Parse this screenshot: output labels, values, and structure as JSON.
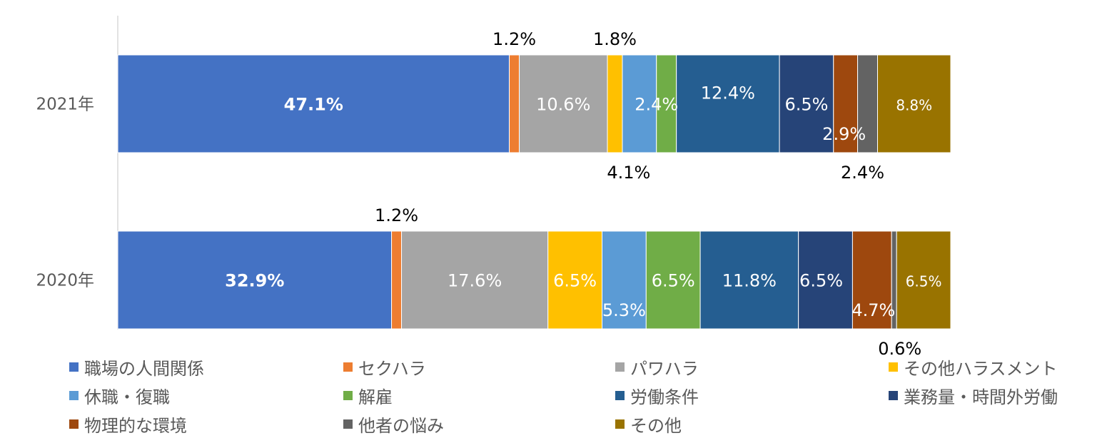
{
  "chart_data": {
    "type": "bar",
    "orientation": "horizontal",
    "stacked": "100%",
    "categories": [
      "2021年",
      "2020年"
    ],
    "series": [
      {
        "name": "職場の人間関係",
        "color": "#4472C4",
        "values": [
          47.1,
          32.9
        ],
        "labels": [
          "47.1%",
          "32.9%"
        ]
      },
      {
        "name": "セクハラ",
        "color": "#ED7D31",
        "values": [
          1.2,
          1.2
        ],
        "labels": [
          "1.2%",
          "1.2%"
        ]
      },
      {
        "name": "パワハラ",
        "color": "#A5A5A5",
        "values": [
          10.6,
          17.6
        ],
        "labels": [
          "10.6%",
          "17.6%"
        ]
      },
      {
        "name": "その他ハラスメント",
        "color": "#FFC000",
        "values": [
          1.8,
          6.5
        ],
        "labels": [
          "1.8%",
          "6.5%"
        ]
      },
      {
        "name": "休職・復職",
        "color": "#5B9BD5",
        "values": [
          4.1,
          5.3
        ],
        "labels": [
          "4.1%",
          "5.3%"
        ]
      },
      {
        "name": "解雇",
        "color": "#70AD47",
        "values": [
          2.4,
          6.5
        ],
        "labels": [
          "2.4%",
          "6.5%"
        ]
      },
      {
        "name": "労働条件",
        "color": "#255E91",
        "values": [
          12.4,
          11.8
        ],
        "labels": [
          "12.4%",
          "11.8%"
        ]
      },
      {
        "name": "業務量・時間外労働",
        "color": "#264478",
        "values": [
          6.5,
          6.5
        ],
        "labels": [
          "6.5%",
          "6.5%"
        ]
      },
      {
        "name": "物理的な環境",
        "color": "#9E480E",
        "values": [
          2.9,
          4.7
        ],
        "labels": [
          "2.9%",
          "4.7%"
        ]
      },
      {
        "name": "他者の悩み",
        "color": "#636363",
        "values": [
          2.4,
          0.6
        ],
        "labels": [
          "2.4%",
          "0.6%"
        ]
      },
      {
        "name": "その他",
        "color": "#997300",
        "values": [
          8.8,
          6.5
        ],
        "labels": [
          "8.8%",
          "6.5%"
        ]
      }
    ],
    "legend_position": "bottom",
    "grid": false,
    "xlim": [
      0,
      100
    ]
  }
}
